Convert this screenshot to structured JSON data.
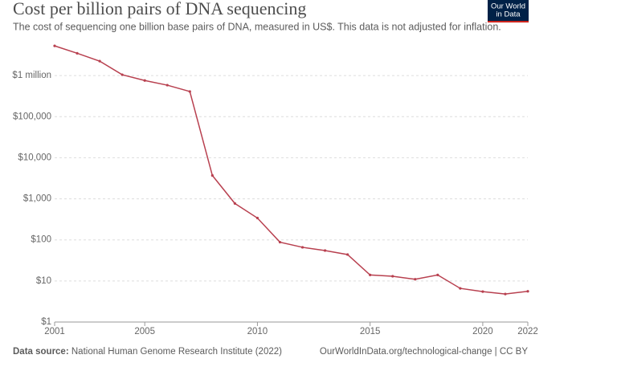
{
  "chart_data": {
    "type": "line",
    "title": "Cost per billion pairs of DNA sequencing",
    "subtitle": "The cost of sequencing one billion base pairs of DNA, measured in US$. This data is not adjusted for inflation.",
    "logo": [
      "Our World",
      "in Data"
    ],
    "source_label": "Data source:",
    "source": "National Human Genome Research Institute (2022)",
    "footer_right": "OurWorldInData.org/technological-change | CC BY",
    "x": [
      2001,
      2002,
      2003,
      2004,
      2005,
      2006,
      2007,
      2008,
      2009,
      2010,
      2011,
      2012,
      2013,
      2014,
      2015,
      2016,
      2017,
      2018,
      2019,
      2020,
      2021,
      2022
    ],
    "series": [
      {
        "name": "Cost per billion pairs",
        "color": "#b8404f",
        "values": [
          5300000,
          3500000,
          2250000,
          1050000,
          760000,
          585000,
          410000,
          3700,
          770,
          340,
          88,
          66,
          55,
          44,
          14,
          13,
          11,
          14,
          6.6,
          5.5,
          4.8,
          5.6
        ]
      }
    ],
    "log_y": true,
    "grid": true,
    "xlim": [
      2001,
      2022
    ],
    "xticks": [
      2001,
      2005,
      2010,
      2015,
      2020,
      2022
    ],
    "ylim": [
      1,
      10000000
    ],
    "yticks": [
      {
        "value": 1,
        "label": "$1"
      },
      {
        "value": 10,
        "label": "$10"
      },
      {
        "value": 100,
        "label": "$100"
      },
      {
        "value": 1000,
        "label": "$1,000"
      },
      {
        "value": 10000,
        "label": "$10,000"
      },
      {
        "value": 100000,
        "label": "$100,000"
      },
      {
        "value": 1000000,
        "label": "$1 million"
      }
    ]
  }
}
